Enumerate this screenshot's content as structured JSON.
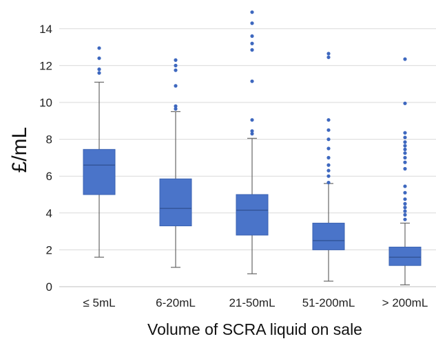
{
  "chart_data": {
    "type": "box",
    "title": "",
    "xlabel": "Volume of SCRA liquid on sale",
    "ylabel": "£/mL",
    "ylim": [
      0,
      15
    ],
    "yticks": [
      0,
      2,
      4,
      6,
      8,
      10,
      12,
      14
    ],
    "grid": "horizontal",
    "legend": "none",
    "colors": {
      "box_fill": "#4a74c9",
      "box_stroke": "#3a62b2",
      "whisker": "#666666",
      "outlier": "#3e68bf",
      "grid": "#d9d9d9"
    },
    "categories": [
      "≤ 5mL",
      "6-20mL",
      "21-50mL",
      "51-200mL",
      "> 200mL"
    ],
    "boxes": [
      {
        "category": "≤ 5mL",
        "min": 1.6,
        "q1": 5.0,
        "median": 6.6,
        "q3": 7.45,
        "max": 11.1,
        "outliers": [
          11.6,
          11.8,
          12.4,
          12.95
        ]
      },
      {
        "category": "6-20mL",
        "min": 1.05,
        "q1": 3.3,
        "median": 4.25,
        "q3": 5.85,
        "max": 9.5,
        "outliers": [
          9.65,
          9.8,
          10.9,
          11.75,
          12.0,
          12.3
        ]
      },
      {
        "category": "21-50mL",
        "min": 0.7,
        "q1": 2.8,
        "median": 4.15,
        "q3": 5.0,
        "max": 8.05,
        "outliers": [
          8.3,
          8.45,
          9.05,
          11.15,
          12.85,
          13.2,
          13.6,
          14.3,
          14.9
        ]
      },
      {
        "category": "51-200mL",
        "min": 0.3,
        "q1": 2.0,
        "median": 2.5,
        "q3": 3.45,
        "max": 5.6,
        "outliers": [
          5.65,
          6.0,
          6.3,
          6.6,
          7.0,
          7.5,
          8.0,
          8.5,
          9.05,
          12.45,
          12.65
        ]
      },
      {
        "category": "> 200mL",
        "min": 0.1,
        "q1": 1.15,
        "median": 1.6,
        "q3": 2.15,
        "max": 3.45,
        "outliers": [
          3.65,
          3.9,
          4.1,
          4.3,
          4.5,
          4.75,
          5.1,
          5.45,
          6.4,
          6.75,
          7.0,
          7.25,
          7.45,
          7.65,
          7.85,
          8.1,
          8.35,
          9.95,
          12.35
        ]
      }
    ]
  }
}
